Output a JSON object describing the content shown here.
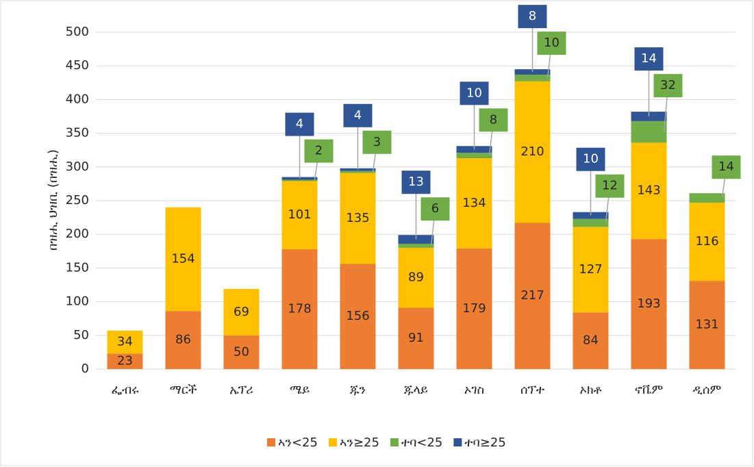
{
  "chart_data": {
    "type": "stacked_bar",
    "y_label": "በዝሒ ህዝቢ (በዝሒ)",
    "categories": [
      "ፌብሩ",
      "ማርች",
      "ኤፕሪ",
      "ሜይ",
      "ጁን",
      "ጁላይ",
      "ኦገስ",
      "ሰፕተ",
      "ኦክቶ",
      "ኖቬም",
      "ዲሰም"
    ],
    "series": [
      {
        "name": "ኣን<25",
        "color": "#ed7d31",
        "values": [
          23,
          86,
          50,
          178,
          156,
          91,
          179,
          217,
          84,
          193,
          131
        ]
      },
      {
        "name": "ኣን≥25",
        "color": "#ffc000",
        "values": [
          34,
          154,
          69,
          101,
          135,
          89,
          134,
          210,
          127,
          143,
          116
        ]
      },
      {
        "name": "ተባ<25",
        "color": "#70ad47",
        "values": [
          null,
          null,
          null,
          2,
          3,
          6,
          8,
          10,
          12,
          32,
          14
        ]
      },
      {
        "name": "ተባ≥25",
        "color": "#2f5597",
        "values": [
          null,
          null,
          null,
          4,
          4,
          13,
          10,
          8,
          10,
          14,
          null
        ]
      }
    ],
    "ylim": [
      0,
      500
    ],
    "yticks": [
      0,
      50,
      100,
      150,
      200,
      250,
      300,
      350,
      400,
      450,
      500
    ],
    "grid": true,
    "legend": "bottom"
  }
}
